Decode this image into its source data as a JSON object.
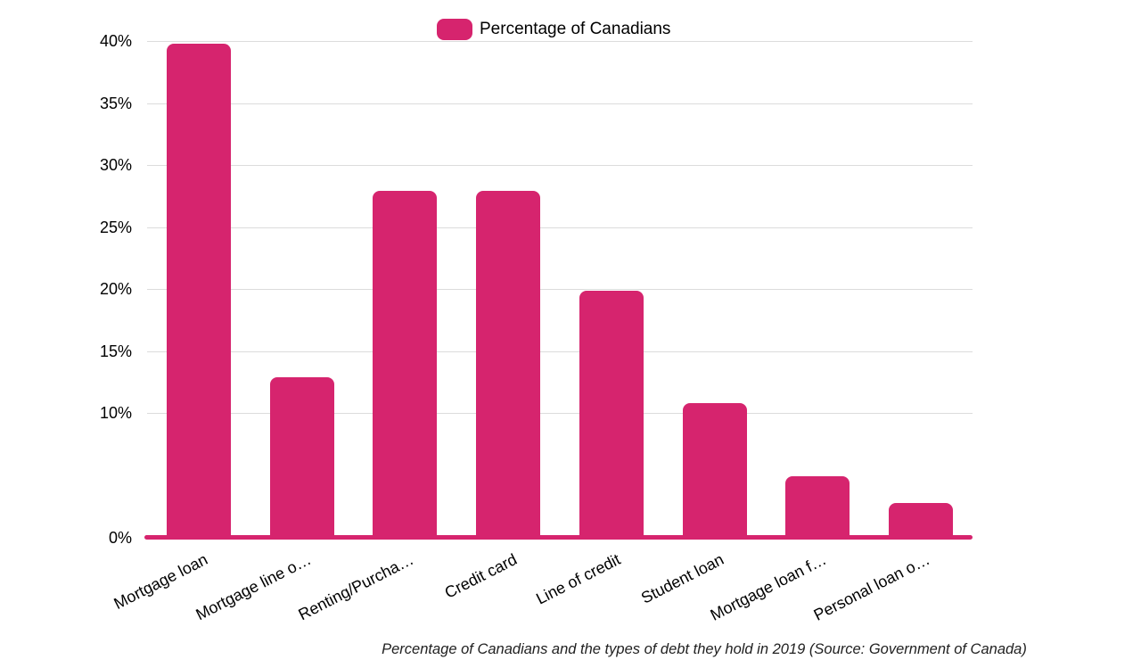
{
  "chart_data": {
    "type": "bar",
    "title": "",
    "caption": "Percentage of Canadians and the types of debt they hold in 2019 (Source: Government of Canada)",
    "categories": [
      "Mortgage loan",
      "Mortgage line o…",
      "Renting/Purcha…",
      "Credit card",
      "Line of credit",
      "Student loan",
      "Mortgage loan f…",
      "Personal loan o…"
    ],
    "series": [
      {
        "name": "Percentage of Canadians",
        "values": [
          39.8,
          12.9,
          27.9,
          27.9,
          19.9,
          10.8,
          4.9,
          2.8
        ]
      }
    ],
    "xlabel": "",
    "ylabel": "",
    "ylim": [
      0,
      40
    ],
    "y_ticks": [
      40,
      35,
      30,
      25,
      20,
      15,
      10,
      0
    ],
    "y_tick_suffix": "%",
    "grid": true,
    "legend_position": "top-center",
    "colors": {
      "bar": "#d6246e",
      "axis_line": "#d6246e",
      "gridline": "#dcdcdc",
      "text": "#000000"
    }
  }
}
